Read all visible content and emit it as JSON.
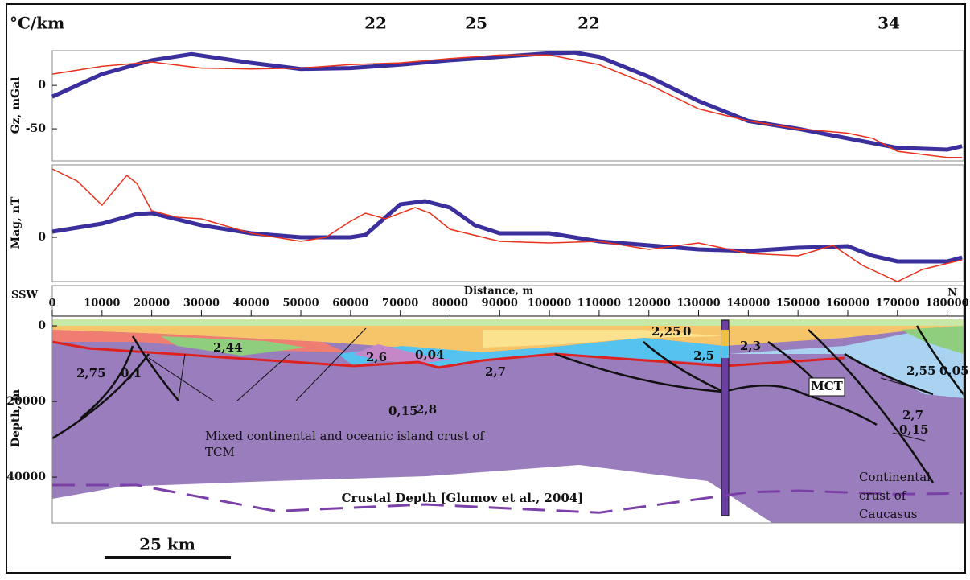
{
  "heat_flow": {
    "unit": "°C/km",
    "values": [
      22,
      25,
      22,
      34
    ]
  },
  "chart_data": [
    {
      "type": "line",
      "ylabel": "Gz, mGal",
      "xlim": [
        0,
        183300
      ],
      "ylim": [
        -87,
        40
      ],
      "yticks": [
        -50,
        0
      ],
      "series": [
        {
          "color": "#3a2f9c",
          "x": [
            0,
            10000,
            20000,
            28000,
            40000,
            50000,
            60000,
            70000,
            80000,
            90000,
            100000,
            105000,
            110000,
            120000,
            130000,
            140000,
            150000,
            160000,
            170000,
            180000,
            183000
          ],
          "values": [
            -13,
            13,
            29,
            36,
            26,
            19,
            20,
            24,
            29,
            33,
            37,
            38,
            33,
            10,
            -18,
            -41,
            -50,
            -61,
            -72,
            -74,
            -70
          ]
        },
        {
          "color": "#e8321e",
          "x": [
            0,
            10000,
            20000,
            30000,
            40000,
            50000,
            60000,
            70000,
            80000,
            90000,
            100000,
            110000,
            120000,
            130000,
            140000,
            150000,
            160000,
            165000,
            170000,
            180000,
            183000
          ],
          "values": [
            13,
            22,
            27,
            20,
            19,
            20,
            24,
            26,
            31,
            35,
            35,
            24,
            1,
            -27,
            -41,
            -50,
            -55,
            -61,
            -76,
            -83,
            -83
          ]
        }
      ]
    },
    {
      "type": "line",
      "ylabel": "Mag, nT",
      "xlim": [
        0,
        183300
      ],
      "ylim": [
        -55,
        90
      ],
      "yticks": [
        0
      ],
      "series": [
        {
          "color": "#3a2f9c",
          "x": [
            0,
            10000,
            17000,
            20000,
            30000,
            40000,
            50000,
            60000,
            63000,
            70000,
            75000,
            80000,
            85000,
            90000,
            100000,
            110000,
            120000,
            130000,
            140000,
            150000,
            160000,
            165000,
            170000,
            180000,
            183000
          ],
          "values": [
            7,
            17,
            29,
            30,
            15,
            5,
            0,
            0,
            3,
            41,
            45,
            37,
            15,
            5,
            5,
            -5,
            -10,
            -15,
            -17,
            -13,
            -11,
            -23,
            -30,
            -30,
            -25
          ]
        },
        {
          "color": "#e8321e",
          "x": [
            0,
            5000,
            10000,
            15000,
            17000,
            20000,
            25000,
            30000,
            40000,
            50000,
            55000,
            60000,
            63000,
            67000,
            73000,
            76000,
            80000,
            90000,
            100000,
            110000,
            120000,
            130000,
            140000,
            150000,
            157000,
            163000,
            170000,
            175000,
            183000
          ],
          "values": [
            85,
            70,
            40,
            77,
            67,
            33,
            25,
            23,
            5,
            -5,
            0,
            20,
            30,
            23,
            37,
            30,
            10,
            -5,
            -7,
            -5,
            -15,
            -7,
            -20,
            -23,
            -10,
            -35,
            -55,
            -40,
            -28
          ]
        }
      ]
    },
    {
      "type": "section",
      "xlabel": "Distance, m",
      "ylabel": "Depth, m",
      "left_label": "SSW",
      "right_label": "N",
      "xlim": [
        0,
        183300
      ],
      "ylim": [
        52100,
        -1500
      ],
      "xticks": [
        0,
        10000,
        20000,
        30000,
        40000,
        50000,
        60000,
        70000,
        80000,
        90000,
        100000,
        110000,
        120000,
        130000,
        140000,
        150000,
        160000,
        170000,
        180000
      ],
      "yticks": [
        0,
        20000,
        40000
      ],
      "crustal_depth": {
        "color": "#7b3fa8",
        "x": [
          0,
          17000,
          45000,
          75000,
          110000,
          140000,
          150000,
          170000,
          183000
        ],
        "values": [
          42100,
          42100,
          49000,
          47200,
          49400,
          44000,
          43600,
          44500,
          44300
        ]
      },
      "annotations": [
        {
          "text": "2,75",
          "color": "#111"
        },
        {
          "text": "0,1",
          "color": "#e0202a"
        },
        {
          "text": "2,44",
          "color": "#111"
        },
        {
          "text": "2,6",
          "color": "#111"
        },
        {
          "text": "0,04",
          "color": "#e0202a"
        },
        {
          "text": "2,7",
          "color": "#111"
        },
        {
          "text": "0,15",
          "color": "#e0202a"
        },
        {
          "text": "2,8",
          "color": "#111"
        },
        {
          "text": "2,25",
          "color": "#111"
        },
        {
          "text": "0",
          "color": "#e0202a"
        },
        {
          "text": "2,5",
          "color": "#111"
        },
        {
          "text": "2,3",
          "color": "#111"
        },
        {
          "text": "2,55",
          "color": "#111"
        },
        {
          "text": "0,05",
          "color": "#e0202a"
        },
        {
          "text": "2,7",
          "color": "#111"
        },
        {
          "text": "0,15",
          "color": "#e0202a"
        },
        {
          "text": "MCT",
          "color": "#111"
        },
        {
          "text": "Mixed continental and oceanic island crust of",
          "color": "#333"
        },
        {
          "text": "TCM",
          "color": "#333"
        },
        {
          "text": "Crustal Depth [Glumov et al., 2004]",
          "color": "#111"
        },
        {
          "text": "Continental",
          "color": "#333"
        },
        {
          "text": "crust of",
          "color": "#333"
        },
        {
          "text": "Caucasus",
          "color": "#333"
        }
      ]
    }
  ],
  "scale_bar": {
    "label": "25 km"
  }
}
